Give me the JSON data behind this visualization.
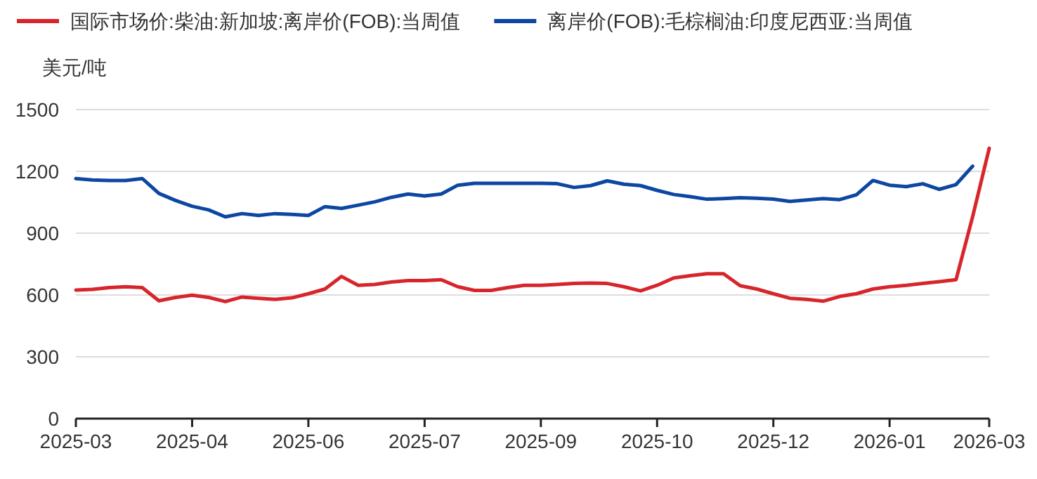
{
  "chart_data": {
    "type": "line",
    "categories": [
      "2025-03",
      null,
      null,
      null,
      null,
      null,
      null,
      "2025-04",
      null,
      null,
      null,
      null,
      null,
      null,
      "2025-06",
      null,
      null,
      null,
      null,
      null,
      null,
      "2025-07",
      null,
      null,
      null,
      null,
      null,
      null,
      "2025-09",
      null,
      null,
      null,
      null,
      null,
      null,
      "2025-10",
      null,
      null,
      null,
      null,
      null,
      null,
      "2025-12",
      null,
      null,
      null,
      null,
      null,
      null,
      "2026-01",
      null,
      null,
      null,
      null,
      null,
      "2026-03"
    ],
    "series": [
      {
        "name": "国际市场价:柴油:新加坡:离岸价(FOB):当周值",
        "color": "#d7262b",
        "values": [
          624,
          627,
          636,
          640,
          636,
          572,
          588,
          599,
          588,
          568,
          590,
          584,
          579,
          586,
          606,
          629,
          690,
          647,
          651,
          663,
          670,
          670,
          674,
          640,
          622,
          622,
          636,
          647,
          647,
          651,
          656,
          658,
          656,
          640,
          620,
          647,
          683,
          694,
          703,
          703,
          645,
          629,
          606,
          584,
          579,
          570,
          593,
          606,
          629,
          640,
          647,
          656,
          665,
          674,
          980,
          1312
        ]
      },
      {
        "name": "离岸价(FOB):毛棕榈油:印度尼西亚:当周值",
        "color": "#0d47a1",
        "values": [
          1165,
          1158,
          1156,
          1156,
          1165,
          1093,
          1059,
          1031,
          1013,
          979,
          995,
          986,
          995,
          991,
          986,
          1029,
          1020,
          1036,
          1052,
          1074,
          1090,
          1081,
          1090,
          1133,
          1142,
          1142,
          1142,
          1142,
          1142,
          1140,
          1122,
          1131,
          1154,
          1138,
          1131,
          1108,
          1088,
          1077,
          1065,
          1068,
          1072,
          1070,
          1065,
          1054,
          1061,
          1068,
          1063,
          1086,
          1156,
          1133,
          1126,
          1140,
          1113,
          1136,
          1225,
          null
        ]
      }
    ],
    "ylabel": "美元/吨",
    "ylim": [
      0,
      1500
    ],
    "yticks": [
      0,
      300,
      600,
      900,
      1200,
      1500
    ],
    "grid": "y",
    "legend": "top left"
  }
}
